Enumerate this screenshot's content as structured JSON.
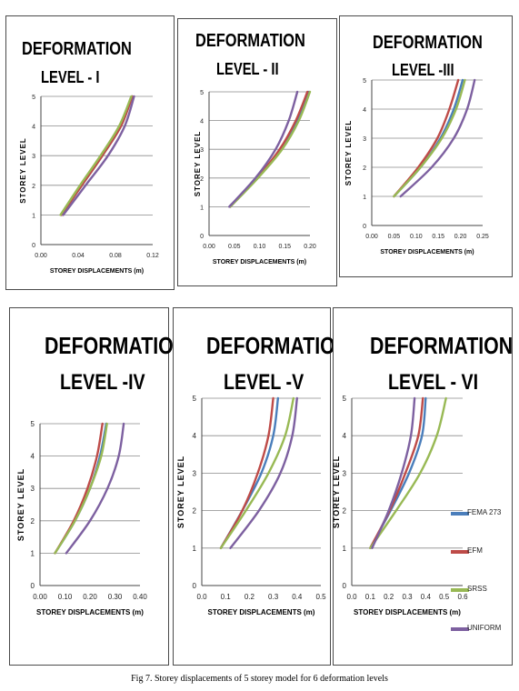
{
  "figure_caption": "Fig 7. Storey displacements of 5 storey model for 6 deformation levels",
  "colors": {
    "FEMA 273": "#4a7ebb",
    "EFM": "#be4b48",
    "SRSS": "#98b954",
    "UNIFORM": "#7d60a0"
  },
  "legend": {
    "items": [
      {
        "name": "FEMA 273",
        "color": "#4a7ebb"
      },
      {
        "name": "EFM",
        "color": "#be4b48"
      },
      {
        "name": "SRSS",
        "color": "#98b954"
      },
      {
        "name": "UNIFORM",
        "color": "#7d60a0"
      }
    ]
  },
  "chart_data": [
    {
      "type": "line",
      "title_line1": "DEFORMATION",
      "title_line2": "LEVEL - I",
      "xlabel": "STOREY DISPLACEMENTS (m)",
      "ylabel": "STOREY LEVEL",
      "xlim": [
        0,
        0.12
      ],
      "xticks": [
        "0.00",
        "0.04",
        "0.08",
        "0.12"
      ],
      "ylim": [
        0,
        5
      ],
      "yticks": [
        "0",
        "1",
        "2",
        "3",
        "4",
        "5"
      ],
      "grid": "horizontal",
      "y": [
        1,
        2,
        3,
        4,
        5
      ],
      "series": [
        {
          "name": "FEMA 273",
          "x": [
            0.022,
            0.044,
            0.066,
            0.086,
            0.098
          ]
        },
        {
          "name": "EFM",
          "x": [
            0.022,
            0.044,
            0.066,
            0.086,
            0.098
          ]
        },
        {
          "name": "SRSS",
          "x": [
            0.021,
            0.042,
            0.064,
            0.084,
            0.097
          ]
        },
        {
          "name": "UNIFORM",
          "x": [
            0.024,
            0.048,
            0.072,
            0.09,
            0.1
          ]
        }
      ]
    },
    {
      "type": "line",
      "title_line1": "DEFORMATION",
      "title_line2": "LEVEL - II",
      "xlabel": "STOREY DISPLACEMENTS (m)",
      "ylabel": "STOREY LEVEL",
      "xlim": [
        0,
        0.2
      ],
      "xticks": [
        "0.00",
        "0.05",
        "0.10",
        "0.15",
        "0.20"
      ],
      "ylim": [
        0,
        5
      ],
      "yticks": [
        "0",
        "1",
        "2",
        "3",
        "4",
        "5"
      ],
      "grid": "horizontal",
      "y": [
        1,
        2,
        3,
        4,
        5
      ],
      "series": [
        {
          "name": "FEMA 273",
          "x": [
            0.042,
            0.095,
            0.142,
            0.175,
            0.198
          ]
        },
        {
          "name": "EFM",
          "x": [
            0.042,
            0.095,
            0.14,
            0.172,
            0.195
          ]
        },
        {
          "name": "SRSS",
          "x": [
            0.042,
            0.097,
            0.145,
            0.178,
            0.2
          ]
        },
        {
          "name": "UNIFORM",
          "x": [
            0.04,
            0.092,
            0.132,
            0.158,
            0.175
          ]
        }
      ]
    },
    {
      "type": "line",
      "title_line1": "DEFORMATION",
      "title_line2": "LEVEL -III",
      "xlabel": "STOREY DISPLACEMENTS (m)",
      "ylabel": "STOREY LEVEL",
      "xlim": [
        0,
        0.25
      ],
      "xticks": [
        "0.00",
        "0.05",
        "0.10",
        "0.15",
        "0.20",
        "0.25"
      ],
      "ylim": [
        0,
        5
      ],
      "yticks": [
        "0",
        "1",
        "2",
        "3",
        "4",
        "5"
      ],
      "grid": "horizontal",
      "y": [
        1,
        2,
        3,
        4,
        5
      ],
      "series": [
        {
          "name": "FEMA 273",
          "x": [
            0.05,
            0.11,
            0.155,
            0.185,
            0.205
          ]
        },
        {
          "name": "EFM",
          "x": [
            0.05,
            0.105,
            0.148,
            0.175,
            0.195
          ]
        },
        {
          "name": "SRSS",
          "x": [
            0.05,
            0.11,
            0.158,
            0.19,
            0.21
          ]
        },
        {
          "name": "UNIFORM",
          "x": [
            0.065,
            0.135,
            0.185,
            0.215,
            0.232
          ]
        }
      ]
    },
    {
      "type": "line",
      "title_line1": "DEFORMATION",
      "title_line2": "LEVEL -IV",
      "xlabel": "STOREY DISPLACEMENTS (m)",
      "ylabel": "STOREY LEVEL",
      "xlim": [
        0,
        0.4
      ],
      "xticks": [
        "0.00",
        "0.10",
        "0.20",
        "0.30",
        "0.40"
      ],
      "ylim": [
        0,
        5
      ],
      "yticks": [
        "0",
        "1",
        "2",
        "3",
        "4",
        "5"
      ],
      "grid": "horizontal",
      "y": [
        1,
        2,
        3,
        4,
        5
      ],
      "series": [
        {
          "name": "FEMA 273",
          "x": [
            0.06,
            0.14,
            0.2,
            0.24,
            0.265
          ]
        },
        {
          "name": "EFM",
          "x": [
            0.06,
            0.135,
            0.19,
            0.228,
            0.25
          ]
        },
        {
          "name": "SRSS",
          "x": [
            0.06,
            0.14,
            0.2,
            0.245,
            0.268
          ]
        },
        {
          "name": "UNIFORM",
          "x": [
            0.105,
            0.2,
            0.27,
            0.315,
            0.335
          ]
        }
      ]
    },
    {
      "type": "line",
      "title_line1": "DEFORMATION",
      "title_line2": "LEVEL -V",
      "xlabel": "STOREY DISPLACEMENTS (m)",
      "ylabel": "STOREY LEVEL",
      "xlim": [
        0,
        0.5
      ],
      "xticks": [
        "0.0",
        "0.1",
        "0.2",
        "0.3",
        "0.4",
        "0.5"
      ],
      "ylim": [
        0,
        5
      ],
      "yticks": [
        "0",
        "1",
        "2",
        "3",
        "4",
        "5"
      ],
      "grid": "horizontal",
      "y": [
        1,
        2,
        3,
        4,
        5
      ],
      "series": [
        {
          "name": "FEMA 273",
          "x": [
            0.08,
            0.17,
            0.25,
            0.3,
            0.32
          ]
        },
        {
          "name": "EFM",
          "x": [
            0.08,
            0.17,
            0.235,
            0.28,
            0.3
          ]
        },
        {
          "name": "SRSS",
          "x": [
            0.08,
            0.185,
            0.28,
            0.35,
            0.385
          ]
        },
        {
          "name": "UNIFORM",
          "x": [
            0.12,
            0.24,
            0.33,
            0.38,
            0.4
          ]
        }
      ]
    },
    {
      "type": "line",
      "title_line1": "DEFORMATION",
      "title_line2": "LEVEL - VI",
      "xlabel": "STOREY DISPLACEMENTS (m)",
      "ylabel": "STOREY LEVEL",
      "xlim": [
        0,
        0.6
      ],
      "xticks": [
        "0.0",
        "0.1",
        "0.2",
        "0.3",
        "0.4",
        "0.5",
        "0.6"
      ],
      "ylim": [
        0,
        5
      ],
      "yticks": [
        "0",
        "1",
        "2",
        "3",
        "4",
        "5"
      ],
      "grid": "horizontal",
      "y": [
        1,
        2,
        3,
        4,
        5
      ],
      "legend": "right",
      "series": [
        {
          "name": "FEMA 273",
          "x": [
            0.1,
            0.21,
            0.31,
            0.38,
            0.4
          ]
        },
        {
          "name": "EFM",
          "x": [
            0.1,
            0.205,
            0.29,
            0.36,
            0.385
          ]
        },
        {
          "name": "SRSS",
          "x": [
            0.1,
            0.24,
            0.37,
            0.46,
            0.51
          ]
        },
        {
          "name": "UNIFORM",
          "x": [
            0.11,
            0.2,
            0.27,
            0.32,
            0.34
          ]
        }
      ]
    }
  ]
}
